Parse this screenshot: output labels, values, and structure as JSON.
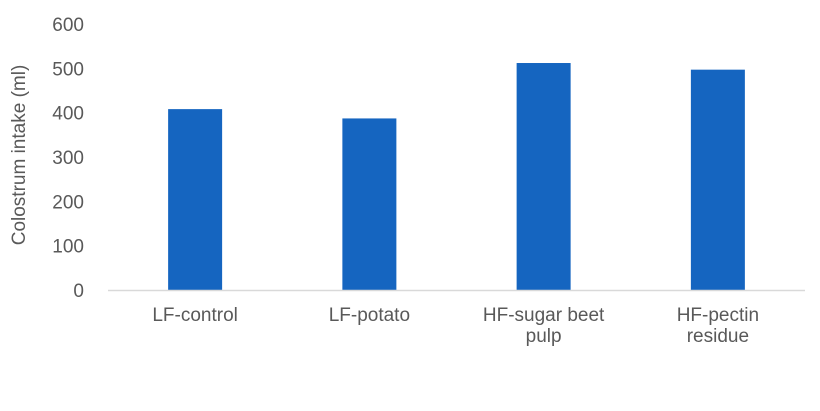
{
  "chart_data": {
    "type": "bar",
    "categories": [
      [
        "LF-control"
      ],
      [
        "LF-potato"
      ],
      [
        "HF-sugar beet",
        "pulp"
      ],
      [
        "HF-pectin",
        "residue"
      ]
    ],
    "values": [
      408,
      387,
      512,
      497
    ],
    "title": "",
    "xlabel": "",
    "ylabel": "Colostrum intake (ml)",
    "ylim": [
      0,
      600
    ],
    "yticks": [
      0,
      100,
      200,
      300,
      400,
      500,
      600
    ],
    "grid": false,
    "legend": "none",
    "bar_color": "#1565C0",
    "axis_color": "#D9D9D9",
    "text_color": "#595959"
  }
}
